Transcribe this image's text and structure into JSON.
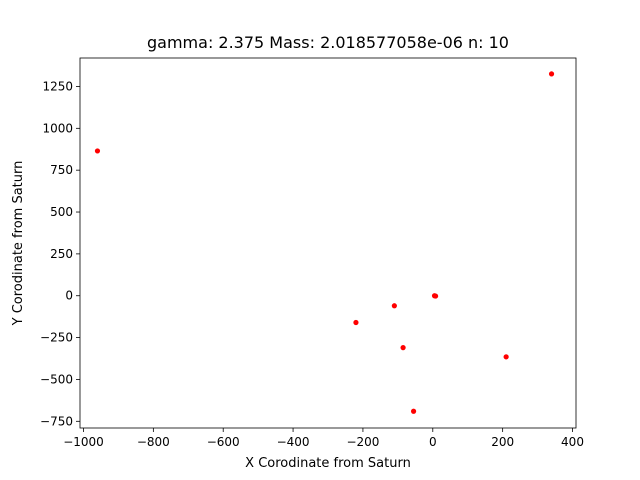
{
  "chart_data": {
    "type": "scatter",
    "title": "gamma: 2.375 Mass: 2.018577058e-06 n: 10",
    "xlabel": "X Corodinate from Saturn",
    "ylabel": "Y Corodinate from Saturn",
    "xlim": [
      -1010,
      410
    ],
    "ylim": [
      -790,
      1420
    ],
    "xticks": [
      -1000,
      -800,
      -600,
      -400,
      -200,
      0,
      200,
      400
    ],
    "yticks": [
      -750,
      -500,
      -250,
      0,
      250,
      500,
      750,
      1000,
      1250
    ],
    "grid": false,
    "point_color": "#ff0000",
    "series": [
      {
        "x": [
          -960,
          340,
          5,
          8,
          -110,
          -220,
          -85,
          210,
          -55
        ],
        "y": [
          865,
          1325,
          0,
          -2,
          -60,
          -160,
          -310,
          -365,
          -690
        ]
      }
    ]
  }
}
